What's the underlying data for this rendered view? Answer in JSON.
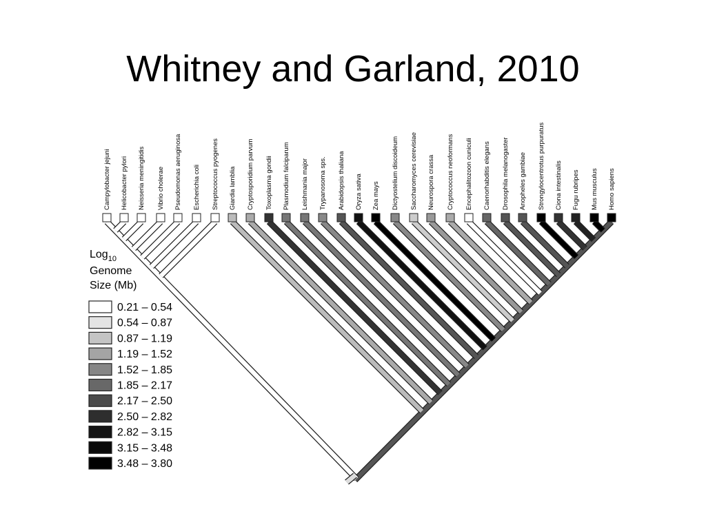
{
  "header": {
    "title": "Whitney and Garland, 2010"
  },
  "legend": {
    "title": [
      "Log",
      "10",
      "Genome",
      "Size (Mb)"
    ],
    "items": [
      {
        "label": "0.21 – 0.54",
        "color": "#ffffff"
      },
      {
        "label": "0.54 – 0.87",
        "color": "#e4e4e4"
      },
      {
        "label": "0.87 – 1.19",
        "color": "#c4c4c4"
      },
      {
        "label": "1.19 – 1.52",
        "color": "#a4a4a4"
      },
      {
        "label": "1.52 – 1.85",
        "color": "#868686"
      },
      {
        "label": "1.85 – 2.17",
        "color": "#686868"
      },
      {
        "label": "2.17 – 2.50",
        "color": "#4a4a4a"
      },
      {
        "label": "2.50 – 2.82",
        "color": "#2e2e2e"
      },
      {
        "label": "2.82 – 3.15",
        "color": "#141414"
      },
      {
        "label": "3.15 – 3.48",
        "color": "#0a0a0a"
      },
      {
        "label": "3.48 – 3.80",
        "color": "#000000"
      }
    ]
  },
  "taxa": [
    "Campylobacter jejuni",
    "Helicobacter pylori",
    "Neisseria meningitidis",
    "Vibrio cholerae",
    "Pseudomonas aeruginosa",
    "Escherichia coli",
    "Streptococcus pyogenes",
    "Giardia lamblia",
    "Cryptosporidium parvum",
    "Toxoplasma gondii",
    "Plasmodium falciparum",
    "Leishmania major",
    "Trypanosoma sps.",
    "Arabidopsis thaliana",
    "Oryza sativa",
    "Zea mays",
    "Dictyostelium discoideum",
    "Saccharomyces cerevisiae",
    "Neurospora crassa",
    "Cryptococcus neoformans",
    "Encephalitozoon cuniculi",
    "Caenorhabditis elegans",
    "Drosophila melanogaster",
    "Anopheles gambiae",
    "Strongylocentrotus purpuratus",
    "Ciona intestinalis",
    "Fugu rubripes",
    "Mus musculus",
    "Homo sapiens"
  ]
}
